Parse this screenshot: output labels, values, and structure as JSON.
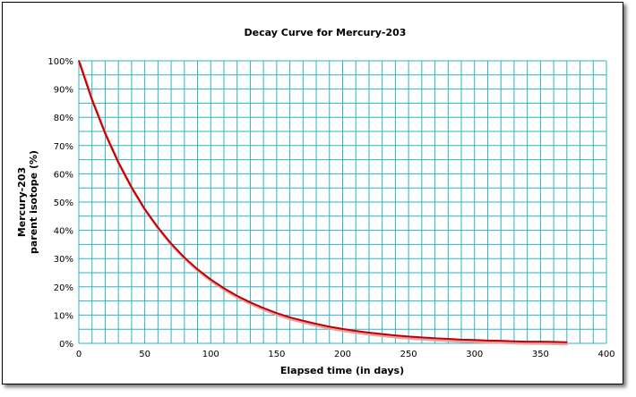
{
  "chart_data": {
    "type": "line",
    "title": "Decay Curve for Mercury-203",
    "xlabel": "Elapsed time (in days)",
    "ylabel_lines": [
      "Mercury-203",
      "parent isotope (%)"
    ],
    "xlim": [
      0,
      400
    ],
    "ylim": [
      0,
      100
    ],
    "x_ticks": [
      0,
      50,
      100,
      150,
      200,
      250,
      300,
      350,
      400
    ],
    "x_tick_labels": [
      "0",
      "50",
      "100",
      "150",
      "200",
      "250",
      "300",
      "350",
      "400"
    ],
    "y_ticks": [
      0,
      10,
      20,
      30,
      40,
      50,
      60,
      70,
      80,
      90,
      100
    ],
    "y_tick_labels": [
      "0%",
      "10%",
      "20%",
      "30%",
      "40%",
      "50%",
      "60%",
      "70%",
      "80%",
      "90%",
      "100%"
    ],
    "grid": true,
    "grid_minor_x_step": 10,
    "grid_minor_y_step": 5,
    "series": [
      {
        "name": "Mercury-203",
        "color": "#c00000",
        "x": [
          0,
          10,
          20,
          30,
          40,
          50,
          60,
          70,
          80,
          90,
          100,
          110,
          120,
          130,
          140,
          150,
          160,
          170,
          180,
          190,
          200,
          210,
          220,
          230,
          240,
          250,
          260,
          270,
          280,
          290,
          300,
          310,
          320,
          330,
          340,
          350,
          360,
          370
        ],
        "y": [
          100,
          86.2,
          74.3,
          64.0,
          55.2,
          47.5,
          41.0,
          35.3,
          30.4,
          26.2,
          22.6,
          19.5,
          16.8,
          14.5,
          12.5,
          10.7,
          9.2,
          8.0,
          6.9,
          5.9,
          5.1,
          4.4,
          3.8,
          3.3,
          2.8,
          2.4,
          2.1,
          1.8,
          1.6,
          1.3,
          1.2,
          1.0,
          0.9,
          0.7,
          0.6,
          0.6,
          0.5,
          0.4
        ]
      }
    ],
    "grid_color": "#2bb3c6"
  }
}
